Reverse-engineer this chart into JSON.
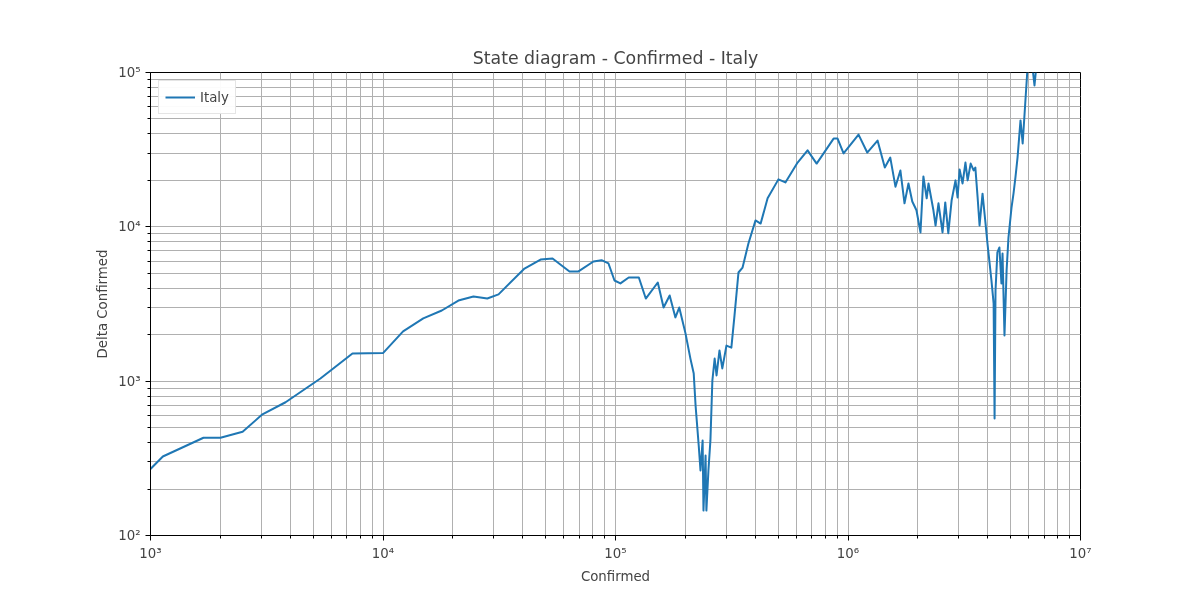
{
  "chart_data": {
    "type": "line",
    "title": "State diagram - Confirmed - Italy",
    "xlabel": "Confirmed",
    "ylabel": "Delta Confirmed",
    "log": "xy",
    "grid": true,
    "legend": "top left",
    "xlim": [
      1000,
      10000000
    ],
    "ylim": [
      100,
      100000
    ],
    "xticks": [
      {
        "value": 1000,
        "label": "10³"
      },
      {
        "value": 10000,
        "label": "10⁴"
      },
      {
        "value": 100000,
        "label": "10⁵"
      },
      {
        "value": 1000000,
        "label": "10⁶"
      },
      {
        "value": 10000000,
        "label": "10⁷"
      }
    ],
    "yticks": [
      {
        "value": 100,
        "label": "10²"
      },
      {
        "value": 1000,
        "label": "10³"
      },
      {
        "value": 10000,
        "label": "10⁴"
      },
      {
        "value": 100000,
        "label": "10⁵"
      }
    ],
    "series": [
      {
        "name": "Italy",
        "color": "#1f77b4",
        "x": [
          1000,
          1130,
          1690,
          2000,
          2490,
          3030,
          3810,
          5380,
          7390,
          10000,
          12200,
          14900,
          17900,
          21100,
          24500,
          28100,
          31400,
          40600,
          47600,
          53600,
          63400,
          69300,
          80400,
          87100,
          93300,
          99000,
          105000,
          114000,
          126000,
          135000,
          152000,
          161000,
          171000,
          181000,
          188000,
          200000,
          210000,
          217000,
          221000,
          228000,
          232000,
          237000,
          239000,
          244000,
          246000,
          251000,
          256000,
          261000,
          267000,
          272000,
          280000,
          288000,
          300000,
          315000,
          325000,
          338000,
          352000,
          373000,
          400000,
          421000,
          451000,
          502000,
          538000,
          607000,
          670000,
          733000,
          867000,
          902000,
          957000,
          1110000,
          1210000,
          1340000,
          1440000,
          1520000,
          1600000,
          1680000,
          1750000,
          1820000,
          1890000,
          1970000,
          2050000,
          2110000,
          2180000,
          2220000,
          2330000,
          2380000,
          2450000,
          2550000,
          2620000,
          2700000,
          2790000,
          2900000,
          2960000,
          3020000,
          3110000,
          3200000,
          3270000,
          3370000,
          3470000,
          3530000,
          3610000,
          3680000,
          3790000,
          3900000,
          3980000,
          4140000,
          4230000,
          4270000,
          4310000,
          4390000,
          4480000,
          4570000,
          4620000,
          4710000,
          4810000,
          4900000,
          5050000,
          5150000,
          5250000,
          5360000,
          5520000,
          5640000,
          5900000,
          null,
          6250000,
          6340000,
          6420000
        ],
        "values": [
          270,
          325,
          430,
          430,
          470,
          610,
          730,
          1040,
          1510,
          1520,
          2100,
          2550,
          2870,
          3330,
          3540,
          3430,
          3650,
          5370,
          6140,
          6240,
          5140,
          5140,
          5960,
          6080,
          5790,
          4490,
          4300,
          4700,
          4700,
          3430,
          4360,
          3000,
          3590,
          2590,
          3000,
          2040,
          1400,
          1120,
          695,
          383,
          264,
          413,
          145,
          330,
          145,
          264,
          413,
          1010,
          1400,
          1090,
          1580,
          1210,
          1700,
          1650,
          2670,
          5060,
          5450,
          7800,
          11000,
          10500,
          15300,
          20300,
          19400,
          26100,
          31300,
          25700,
          37300,
          37300,
          29900,
          39600,
          30300,
          36200,
          24200,
          28100,
          18200,
          23200,
          14200,
          19100,
          14600,
          12800,
          9200,
          21200,
          15300,
          19100,
          12800,
          10200,
          14200,
          9200,
          14400,
          9100,
          14800,
          20000,
          15500,
          23500,
          19100,
          26100,
          20000,
          25700,
          23200,
          24200,
          15500,
          10200,
          16400,
          10700,
          7800,
          4490,
          3190,
          573,
          3870,
          6820,
          7350,
          4300,
          6720,
          1980,
          5210,
          8530,
          13300,
          16400,
          20900,
          28100,
          48900,
          34700,
          100000,
          null,
          100000,
          82400,
          100000
        ]
      }
    ]
  }
}
